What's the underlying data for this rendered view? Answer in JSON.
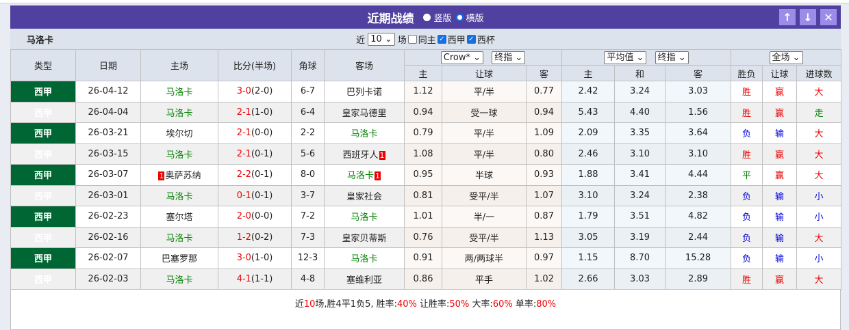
{
  "header": {
    "title": "近期战绩",
    "option_vertical": "竖版",
    "option_horizontal": "横版",
    "selected": "横版"
  },
  "filter": {
    "team": "马洛卡",
    "recent_prefix": "近",
    "count": "10",
    "recent_suffix": "场",
    "same_home": "同主",
    "same_home_checked": false,
    "leagues": [
      {
        "label": "西甲",
        "checked": true
      },
      {
        "label": "西杯",
        "checked": true
      }
    ]
  },
  "columns": {
    "type": "类型",
    "date": "日期",
    "home": "主场",
    "score": "比分(半场)",
    "corners": "角球",
    "away": "客场",
    "company": "Crow*",
    "odds_mode": "终指",
    "avg": "平均值",
    "avg_mode": "终指",
    "period": "全场",
    "ah_home": "主",
    "ah_line": "让球",
    "ah_away": "客",
    "eu_home": "主",
    "eu_draw": "和",
    "eu_away": "客",
    "res": "胜负",
    "res_ah": "让球",
    "res_goals": "进球数"
  },
  "colors": {
    "header": "#5040a0",
    "league": "#006633",
    "team_highlight": "#008000",
    "win": "#ee0000",
    "loss": "#0000dd",
    "draw": "#008000"
  },
  "rows": [
    {
      "league": "西甲",
      "date": "26-04-12",
      "home": "马洛卡",
      "home_red": "",
      "score": "3-0",
      "half": "(2-0)",
      "corners": "6-7",
      "away": "巴列卡诺",
      "away_red": "",
      "hl": "home",
      "o1": "1.12",
      "line": "平/半",
      "o2": "0.77",
      "e1": "2.42",
      "ex": "3.24",
      "e2": "3.03",
      "res": "胜",
      "ah": "赢",
      "goals": "大"
    },
    {
      "league": "西甲",
      "date": "26-04-04",
      "home": "马洛卡",
      "home_red": "",
      "score": "2-1",
      "half": "(1-0)",
      "corners": "6-4",
      "away": "皇家马德里",
      "away_red": "",
      "hl": "home",
      "o1": "0.94",
      "line": "受一球",
      "o2": "0.94",
      "e1": "5.43",
      "ex": "4.40",
      "e2": "1.56",
      "res": "胜",
      "ah": "赢",
      "goals": "走"
    },
    {
      "league": "西甲",
      "date": "26-03-21",
      "home": "埃尔切",
      "home_red": "",
      "score": "2-1",
      "half": "(0-0)",
      "corners": "2-2",
      "away": "马洛卡",
      "away_red": "",
      "hl": "away",
      "o1": "0.79",
      "line": "平/半",
      "o2": "1.09",
      "e1": "2.09",
      "ex": "3.35",
      "e2": "3.64",
      "res": "负",
      "ah": "输",
      "goals": "大"
    },
    {
      "league": "西甲",
      "date": "26-03-15",
      "home": "马洛卡",
      "home_red": "",
      "score": "2-1",
      "half": "(0-1)",
      "corners": "5-6",
      "away": "西班牙人",
      "away_red": "1",
      "hl": "home",
      "o1": "1.08",
      "line": "平/半",
      "o2": "0.80",
      "e1": "2.46",
      "ex": "3.10",
      "e2": "3.10",
      "res": "胜",
      "ah": "赢",
      "goals": "大"
    },
    {
      "league": "西甲",
      "date": "26-03-07",
      "home": "奥萨苏纳",
      "home_red": "1",
      "score": "2-2",
      "half": "(0-1)",
      "corners": "8-0",
      "away": "马洛卡",
      "away_red": "1",
      "hl": "away",
      "o1": "0.95",
      "line": "半球",
      "o2": "0.93",
      "e1": "1.88",
      "ex": "3.41",
      "e2": "4.44",
      "res": "平",
      "ah": "赢",
      "goals": "大"
    },
    {
      "league": "西甲",
      "date": "26-03-01",
      "home": "马洛卡",
      "home_red": "",
      "score": "0-1",
      "half": "(0-1)",
      "corners": "3-7",
      "away": "皇家社会",
      "away_red": "",
      "hl": "home",
      "o1": "0.81",
      "line": "受平/半",
      "o2": "1.07",
      "e1": "3.10",
      "ex": "3.24",
      "e2": "2.38",
      "res": "负",
      "ah": "输",
      "goals": "小"
    },
    {
      "league": "西甲",
      "date": "26-02-23",
      "home": "塞尔塔",
      "home_red": "",
      "score": "2-0",
      "half": "(0-0)",
      "corners": "7-2",
      "away": "马洛卡",
      "away_red": "",
      "hl": "away",
      "o1": "1.01",
      "line": "半/一",
      "o2": "0.87",
      "e1": "1.79",
      "ex": "3.51",
      "e2": "4.82",
      "res": "负",
      "ah": "输",
      "goals": "小"
    },
    {
      "league": "西甲",
      "date": "26-02-16",
      "home": "马洛卡",
      "home_red": "",
      "score": "1-2",
      "half": "(0-2)",
      "corners": "7-3",
      "away": "皇家贝蒂斯",
      "away_red": "",
      "hl": "home",
      "o1": "0.76",
      "line": "受平/半",
      "o2": "1.13",
      "e1": "3.05",
      "ex": "3.19",
      "e2": "2.44",
      "res": "负",
      "ah": "输",
      "goals": "大"
    },
    {
      "league": "西甲",
      "date": "26-02-07",
      "home": "巴塞罗那",
      "home_red": "",
      "score": "3-0",
      "half": "(1-0)",
      "corners": "12-3",
      "away": "马洛卡",
      "away_red": "",
      "hl": "away",
      "o1": "0.91",
      "line": "两/两球半",
      "o2": "0.97",
      "e1": "1.15",
      "ex": "8.70",
      "e2": "15.28",
      "res": "负",
      "ah": "输",
      "goals": "小"
    },
    {
      "league": "西甲",
      "date": "26-02-03",
      "home": "马洛卡",
      "home_red": "",
      "score": "4-1",
      "half": "(1-1)",
      "corners": "4-8",
      "away": "塞维利亚",
      "away_red": "",
      "hl": "home",
      "o1": "0.86",
      "line": "平手",
      "o2": "1.02",
      "e1": "2.66",
      "ex": "3.03",
      "e2": "2.89",
      "res": "胜",
      "ah": "赢",
      "goals": "大"
    }
  ],
  "summary": {
    "p1": "近",
    "n": "10",
    "p2": "场,胜4平1负5, 胜率:",
    "win_rate": "40%",
    "p3": " 让胜率:",
    "ah_rate": "50%",
    "p4": " 大率:",
    "over_rate": "60%",
    "p5": " 单率:",
    "odd_rate": "80%"
  }
}
